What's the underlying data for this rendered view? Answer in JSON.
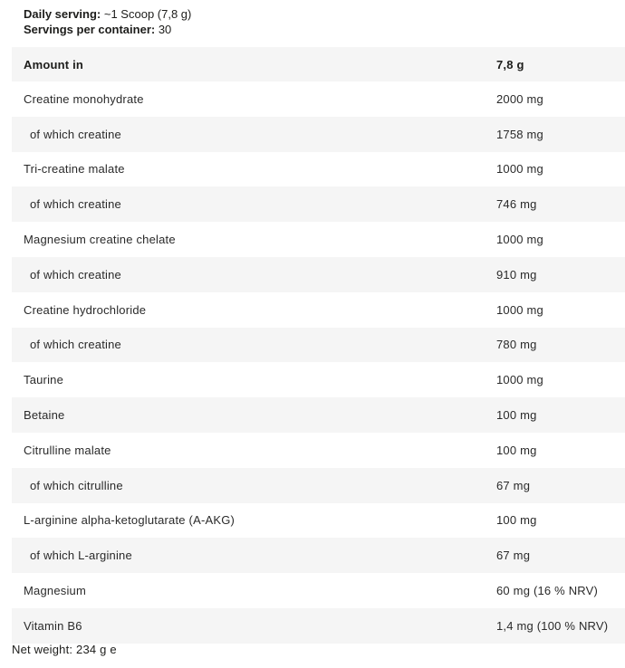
{
  "meta": {
    "daily_serving_label": "Daily serving:",
    "daily_serving_value": " ~1 Scoop (7,8 g)",
    "servings_label": "Servings per container:",
    "servings_value": " 30"
  },
  "table": {
    "header": {
      "col_label": "Amount in",
      "col_value": "7,8 g"
    },
    "rows": [
      {
        "label": "Creatine monohydrate",
        "value": "2000 mg",
        "indent": false
      },
      {
        "label": "of which creatine",
        "value": "1758 mg",
        "indent": true
      },
      {
        "label": "Tri-creatine malate",
        "value": "1000 mg",
        "indent": false
      },
      {
        "label": "of which creatine",
        "value": "746 mg",
        "indent": true
      },
      {
        "label": "Magnesium creatine chelate",
        "value": "1000 mg",
        "indent": false
      },
      {
        "label": "of which creatine",
        "value": "910 mg",
        "indent": true
      },
      {
        "label": "Creatine hydrochloride",
        "value": "1000 mg",
        "indent": false
      },
      {
        "label": "of which creatine",
        "value": "780 mg",
        "indent": true
      },
      {
        "label": "Taurine",
        "value": "1000 mg",
        "indent": false
      },
      {
        "label": "Betaine",
        "value": "100 mg",
        "indent": false
      },
      {
        "label": "Citrulline malate",
        "value": "100 mg",
        "indent": false
      },
      {
        "label": "of which citrulline",
        "value": "67 mg",
        "indent": true
      },
      {
        "label": "L-arginine alpha-ketoglutarate (A-AKG)",
        "value": "100 mg",
        "indent": false
      },
      {
        "label": "of which L-arginine",
        "value": "67 mg",
        "indent": true
      },
      {
        "label": "Magnesium",
        "value": "60 mg (16 % NRV)",
        "indent": false
      },
      {
        "label": "Vitamin B6",
        "value": "1,4 mg (100 % NRV)",
        "indent": false
      }
    ]
  },
  "footer": {
    "net_weight": "Net weight: 234 g e"
  },
  "colors": {
    "stripe": "#f5f5f5",
    "text": "#1d1d1b"
  }
}
